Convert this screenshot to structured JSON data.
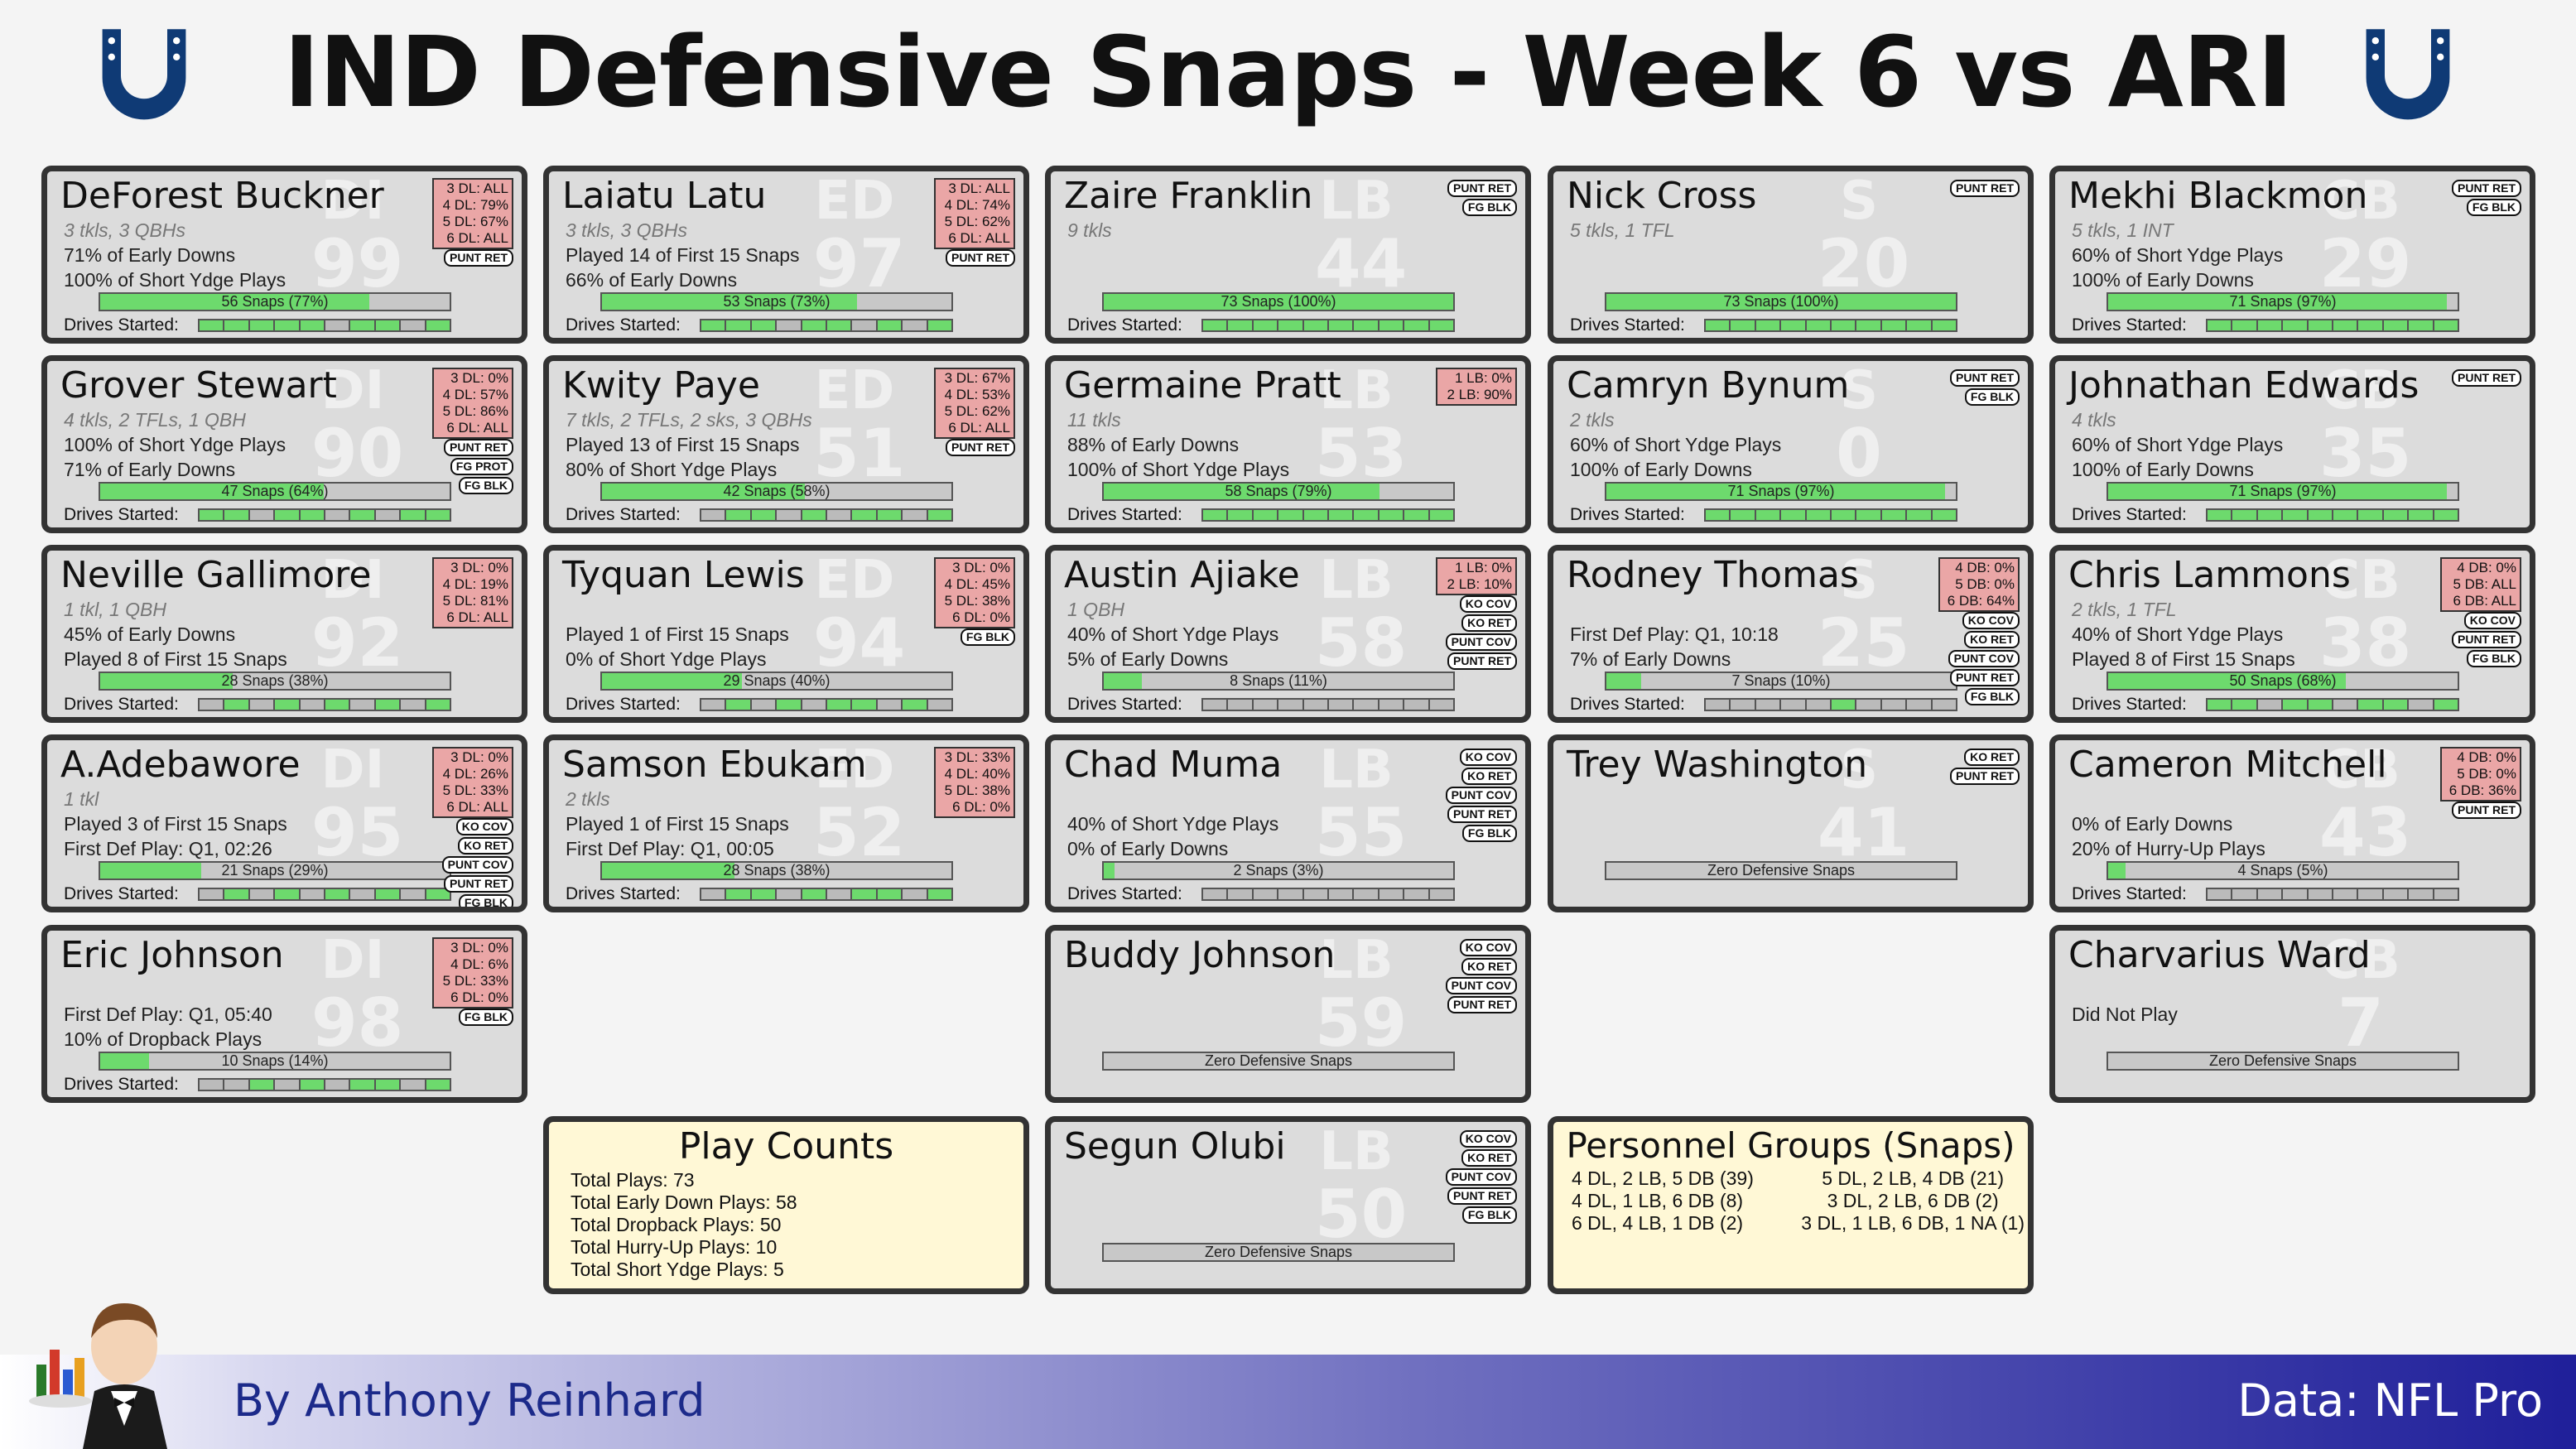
{
  "title": "IND Defensive Snaps - Week 6 vs ARI",
  "colors": {
    "fill": "#6dda6d",
    "alignment_box": "#eaa6a6",
    "card_bg": "#dcdcdc",
    "info_bg": "#fff8d6",
    "colts_blue": "#0f3a75"
  },
  "players": [
    {
      "name": "DeForest Buckner",
      "pos": "DI",
      "num": "99",
      "col": 0,
      "row": 0,
      "lines": [
        {
          "t": "3 tkls, 3 QBHs",
          "it": true
        },
        {
          "t": "71% of Early Downs"
        },
        {
          "t": "100% of Short Ydge Plays"
        }
      ],
      "snaps": {
        "label": "56 Snaps (77%)",
        "pct": 77
      },
      "drives_label": "Drives Started:",
      "drives": [
        1,
        1,
        1,
        1,
        1,
        0,
        1,
        1,
        0,
        1
      ],
      "align": [
        "3 DL: ALL",
        "4 DL: 79%",
        "5 DL: 67%",
        "6 DL: ALL"
      ],
      "badges": [
        "PUNT RET"
      ]
    },
    {
      "name": "Laiatu Latu",
      "pos": "ED",
      "num": "97",
      "col": 1,
      "row": 0,
      "lines": [
        {
          "t": "3 tkls, 3 QBHs",
          "it": true
        },
        {
          "t": "Played 14 of First 15 Snaps"
        },
        {
          "t": "66% of Early Downs"
        }
      ],
      "snaps": {
        "label": "53 Snaps (73%)",
        "pct": 73
      },
      "drives_label": "Drives Started:",
      "drives": [
        1,
        1,
        1,
        0,
        1,
        1,
        0,
        1,
        0,
        1
      ],
      "align": [
        "3 DL: ALL",
        "4 DL: 74%",
        "5 DL: 62%",
        "6 DL: ALL"
      ],
      "badges": [
        "PUNT RET"
      ]
    },
    {
      "name": "Zaire Franklin",
      "pos": "LB",
      "num": "44",
      "col": 2,
      "row": 0,
      "lines": [
        {
          "t": "9 tkls",
          "it": true
        },
        {
          "t": ""
        },
        {
          "t": ""
        }
      ],
      "snaps": {
        "label": "73 Snaps (100%)",
        "pct": 100
      },
      "drives_label": "Drives Started:",
      "drives": [
        1,
        1,
        1,
        1,
        1,
        1,
        1,
        1,
        1,
        1
      ],
      "align": [],
      "badges": [
        "PUNT RET",
        "FG BLK"
      ]
    },
    {
      "name": "Nick Cross",
      "pos": "S",
      "num": "20",
      "col": 3,
      "row": 0,
      "lines": [
        {
          "t": "5 tkls, 1 TFL",
          "it": true
        },
        {
          "t": ""
        },
        {
          "t": ""
        }
      ],
      "snaps": {
        "label": "73 Snaps (100%)",
        "pct": 100
      },
      "drives_label": "Drives Started:",
      "drives": [
        1,
        1,
        1,
        1,
        1,
        1,
        1,
        1,
        1,
        1
      ],
      "align": [],
      "badges": [
        "PUNT RET"
      ]
    },
    {
      "name": "Mekhi Blackmon",
      "pos": "CB",
      "num": "29",
      "col": 4,
      "row": 0,
      "lines": [
        {
          "t": "5 tkls, 1 INT",
          "it": true
        },
        {
          "t": "60% of Short Ydge Plays"
        },
        {
          "t": "100% of Early Downs"
        }
      ],
      "snaps": {
        "label": "71 Snaps (97%)",
        "pct": 97
      },
      "drives_label": "Drives Started:",
      "drives": [
        1,
        1,
        1,
        1,
        1,
        1,
        1,
        1,
        1,
        1
      ],
      "align": [],
      "badges": [
        "PUNT RET",
        "FG BLK"
      ]
    },
    {
      "name": "Grover Stewart",
      "pos": "DI",
      "num": "90",
      "col": 0,
      "row": 1,
      "lines": [
        {
          "t": "4 tkls, 2 TFLs, 1 QBH",
          "it": true
        },
        {
          "t": "100% of Short Ydge Plays"
        },
        {
          "t": "71% of Early Downs"
        }
      ],
      "snaps": {
        "label": "47 Snaps (64%)",
        "pct": 64
      },
      "drives_label": "Drives Started:",
      "drives": [
        1,
        1,
        0,
        1,
        1,
        0,
        1,
        0,
        1,
        1
      ],
      "align": [
        "3 DL: 0%",
        "4 DL: 57%",
        "5 DL: 86%",
        "6 DL: ALL"
      ],
      "badges": [
        "PUNT RET",
        "FG PROT",
        "FG BLK"
      ]
    },
    {
      "name": "Kwity Paye",
      "pos": "ED",
      "num": "51",
      "col": 1,
      "row": 1,
      "lines": [
        {
          "t": "7 tkls, 2 TFLs, 2 sks, 3 QBHs",
          "it": true
        },
        {
          "t": "Played 13 of First 15 Snaps"
        },
        {
          "t": "80% of Short Ydge Plays"
        }
      ],
      "snaps": {
        "label": "42 Snaps (58%)",
        "pct": 58
      },
      "drives_label": "Drives Started:",
      "drives": [
        0,
        1,
        1,
        0,
        1,
        0,
        1,
        1,
        0,
        1
      ],
      "align": [
        "3 DL: 67%",
        "4 DL: 53%",
        "5 DL: 62%",
        "6 DL: ALL"
      ],
      "badges": [
        "PUNT RET"
      ]
    },
    {
      "name": "Germaine Pratt",
      "pos": "LB",
      "num": "53",
      "col": 2,
      "row": 1,
      "lines": [
        {
          "t": "11 tkls",
          "it": true
        },
        {
          "t": "88% of Early Downs"
        },
        {
          "t": "100% of Short Ydge Plays"
        }
      ],
      "snaps": {
        "label": "58 Snaps (79%)",
        "pct": 79
      },
      "drives_label": "Drives Started:",
      "drives": [
        1,
        1,
        1,
        1,
        1,
        1,
        1,
        1,
        1,
        1
      ],
      "align": [
        "1 LB: 0%",
        "2 LB: 90%"
      ],
      "badges": []
    },
    {
      "name": "Camryn Bynum",
      "pos": "S",
      "num": "0",
      "col": 3,
      "row": 1,
      "lines": [
        {
          "t": "2 tkls",
          "it": true
        },
        {
          "t": "60% of Short Ydge Plays"
        },
        {
          "t": "100% of Early Downs"
        }
      ],
      "snaps": {
        "label": "71 Snaps (97%)",
        "pct": 97
      },
      "drives_label": "Drives Started:",
      "drives": [
        1,
        1,
        1,
        1,
        1,
        1,
        1,
        1,
        1,
        1
      ],
      "align": [],
      "badges": [
        "PUNT RET",
        "FG BLK"
      ]
    },
    {
      "name": "Johnathan Edwards",
      "pos": "CB",
      "num": "35",
      "col": 4,
      "row": 1,
      "lines": [
        {
          "t": "4 tkls",
          "it": true
        },
        {
          "t": "60% of Short Ydge Plays"
        },
        {
          "t": "100% of Early Downs"
        }
      ],
      "snaps": {
        "label": "71 Snaps (97%)",
        "pct": 97
      },
      "drives_label": "Drives Started:",
      "drives": [
        1,
        1,
        1,
        1,
        1,
        1,
        1,
        1,
        1,
        1
      ],
      "align": [],
      "badges": [
        "PUNT RET"
      ]
    },
    {
      "name": "Neville Gallimore",
      "pos": "DI",
      "num": "92",
      "col": 0,
      "row": 2,
      "lines": [
        {
          "t": "1 tkl, 1 QBH",
          "it": true
        },
        {
          "t": "45% of Early Downs"
        },
        {
          "t": "Played 8 of First 15 Snaps"
        }
      ],
      "snaps": {
        "label": "28 Snaps (38%)",
        "pct": 38
      },
      "drives_label": "Drives Started:",
      "drives": [
        0,
        1,
        0,
        1,
        0,
        1,
        0,
        1,
        0,
        1
      ],
      "align": [
        "3 DL: 0%",
        "4 DL: 19%",
        "5 DL: 81%",
        "6 DL: ALL"
      ],
      "badges": []
    },
    {
      "name": "Tyquan Lewis",
      "pos": "ED",
      "num": "94",
      "col": 1,
      "row": 2,
      "lines": [
        {
          "t": "",
          "it": true
        },
        {
          "t": "Played 1 of First 15 Snaps"
        },
        {
          "t": "0% of Short Ydge Plays"
        }
      ],
      "snaps": {
        "label": "29 Snaps (40%)",
        "pct": 40
      },
      "drives_label": "Drives Started:",
      "drives": [
        0,
        1,
        0,
        1,
        0,
        1,
        1,
        0,
        1,
        0
      ],
      "align": [
        "3 DL: 0%",
        "4 DL: 45%",
        "5 DL: 38%",
        "6 DL: 0%"
      ],
      "badges": [
        "FG BLK"
      ]
    },
    {
      "name": "Austin Ajiake",
      "pos": "LB",
      "num": "58",
      "col": 2,
      "row": 2,
      "lines": [
        {
          "t": "1 QBH",
          "it": true
        },
        {
          "t": "40% of Short Ydge Plays"
        },
        {
          "t": "5% of Early Downs"
        }
      ],
      "snaps": {
        "label": "8 Snaps (11%)",
        "pct": 11
      },
      "drives_label": "Drives Started:",
      "drives": [
        0,
        0,
        0,
        0,
        0,
        0,
        0,
        0,
        0,
        0
      ],
      "align": [
        "1 LB: 0%",
        "2 LB: 10%"
      ],
      "badges": [
        "KO COV",
        "KO RET",
        "PUNT COV",
        "PUNT RET"
      ]
    },
    {
      "name": "Rodney Thomas",
      "pos": "S",
      "num": "25",
      "col": 3,
      "row": 2,
      "lines": [
        {
          "t": "",
          "it": true
        },
        {
          "t": "First Def Play: Q1, 10:18"
        },
        {
          "t": "7% of Early Downs"
        }
      ],
      "snaps": {
        "label": "7 Snaps (10%)",
        "pct": 10
      },
      "drives_label": "Drives Started:",
      "drives": [
        0,
        0,
        0,
        0,
        0,
        1,
        0,
        0,
        0,
        0
      ],
      "align": [
        "4 DB: 0%",
        "5 DB: 0%",
        "6 DB: 64%"
      ],
      "badges": [
        "KO COV",
        "KO RET",
        "PUNT COV",
        "PUNT RET",
        "FG BLK"
      ]
    },
    {
      "name": "Chris Lammons",
      "pos": "CB",
      "num": "38",
      "col": 4,
      "row": 2,
      "lines": [
        {
          "t": "2 tkls, 1 TFL",
          "it": true
        },
        {
          "t": "40% of Short Ydge Plays"
        },
        {
          "t": "Played 8 of First 15 Snaps"
        }
      ],
      "snaps": {
        "label": "50 Snaps (68%)",
        "pct": 68
      },
      "drives_label": "Drives Started:",
      "drives": [
        1,
        1,
        0,
        1,
        1,
        0,
        1,
        1,
        0,
        1
      ],
      "align": [
        "4 DB: 0%",
        "5 DB: ALL",
        "6 DB: ALL"
      ],
      "badges": [
        "KO COV",
        "PUNT RET",
        "FG BLK"
      ]
    },
    {
      "name": "A.Adebawore",
      "pos": "DI",
      "num": "95",
      "col": 0,
      "row": 3,
      "lines": [
        {
          "t": "1 tkl",
          "it": true
        },
        {
          "t": "Played 3 of First 15 Snaps"
        },
        {
          "t": "First Def Play: Q1, 02:26"
        }
      ],
      "snaps": {
        "label": "21 Snaps (29%)",
        "pct": 29
      },
      "drives_label": "Drives Started:",
      "drives": [
        0,
        1,
        0,
        1,
        0,
        1,
        0,
        1,
        0,
        1
      ],
      "align": [
        "3 DL: 0%",
        "4 DL: 26%",
        "5 DL: 33%",
        "6 DL: ALL"
      ],
      "badges": [
        "KO COV",
        "KO RET",
        "PUNT COV",
        "PUNT RET",
        "FG BLK"
      ]
    },
    {
      "name": "Samson Ebukam",
      "pos": "ED",
      "num": "52",
      "col": 1,
      "row": 3,
      "lines": [
        {
          "t": "2 tkls",
          "it": true
        },
        {
          "t": "Played 1 of First 15 Snaps"
        },
        {
          "t": "First Def Play: Q1, 00:05"
        }
      ],
      "snaps": {
        "label": "28 Snaps (38%)",
        "pct": 38
      },
      "drives_label": "Drives Started:",
      "drives": [
        0,
        1,
        1,
        0,
        1,
        0,
        1,
        1,
        0,
        1
      ],
      "align": [
        "3 DL: 33%",
        "4 DL: 40%",
        "5 DL: 38%",
        "6 DL: 0%"
      ],
      "badges": []
    },
    {
      "name": "Chad Muma",
      "pos": "LB",
      "num": "55",
      "col": 2,
      "row": 3,
      "lines": [
        {
          "t": "",
          "it": true
        },
        {
          "t": "40% of Short Ydge Plays"
        },
        {
          "t": "0% of Early Downs"
        }
      ],
      "snaps": {
        "label": "2 Snaps (3%)",
        "pct": 3
      },
      "drives_label": "Drives Started:",
      "drives": [
        0,
        0,
        0,
        0,
        0,
        0,
        0,
        0,
        0,
        0
      ],
      "align": [],
      "badges": [
        "KO COV",
        "KO RET",
        "PUNT COV",
        "PUNT RET",
        "FG BLK"
      ]
    },
    {
      "name": "Trey Washington",
      "pos": "S",
      "num": "41",
      "col": 3,
      "row": 3,
      "lines": [
        {
          "t": "",
          "it": true
        },
        {
          "t": ""
        },
        {
          "t": ""
        }
      ],
      "snaps": {
        "label": "Zero Defensive Snaps",
        "pct": 0
      },
      "drives_label": "",
      "drives": [],
      "align": [],
      "badges": [
        "KO RET",
        "PUNT RET"
      ]
    },
    {
      "name": "Cameron Mitchell",
      "pos": "CB",
      "num": "43",
      "col": 4,
      "row": 3,
      "lines": [
        {
          "t": "",
          "it": true
        },
        {
          "t": "0% of Early Downs"
        },
        {
          "t": "20% of Hurry-Up Plays"
        }
      ],
      "snaps": {
        "label": "4 Snaps (5%)",
        "pct": 5
      },
      "drives_label": "Drives Started:",
      "drives": [
        0,
        0,
        0,
        0,
        0,
        0,
        0,
        0,
        0,
        0
      ],
      "align": [
        "4 DB: 0%",
        "5 DB: 0%",
        "6 DB: 36%"
      ],
      "badges": [
        "PUNT RET"
      ]
    },
    {
      "name": "Eric Johnson",
      "pos": "DI",
      "num": "98",
      "col": 0,
      "row": 4,
      "lines": [
        {
          "t": "",
          "it": true
        },
        {
          "t": "First Def Play: Q1, 05:40"
        },
        {
          "t": "10% of Dropback Plays"
        }
      ],
      "snaps": {
        "label": "10 Snaps (14%)",
        "pct": 14
      },
      "drives_label": "Drives Started:",
      "drives": [
        0,
        0,
        1,
        0,
        1,
        0,
        1,
        1,
        0,
        1
      ],
      "align": [
        "3 DL: 0%",
        "4 DL: 6%",
        "5 DL: 33%",
        "6 DL: 0%"
      ],
      "badges": [
        "FG BLK"
      ]
    },
    {
      "name": "Buddy Johnson",
      "pos": "LB",
      "num": "59",
      "col": 2,
      "row": 4,
      "lines": [
        {
          "t": "",
          "it": true
        },
        {
          "t": ""
        },
        {
          "t": ""
        }
      ],
      "snaps": {
        "label": "Zero Defensive Snaps",
        "pct": 0
      },
      "drives_label": "",
      "drives": [],
      "align": [],
      "badges": [
        "KO COV",
        "KO RET",
        "PUNT COV",
        "PUNT RET"
      ]
    },
    {
      "name": "Charvarius Ward",
      "pos": "CB",
      "num": "7",
      "col": 4,
      "row": 4,
      "lines": [
        {
          "t": "",
          "it": true
        },
        {
          "t": "Did Not Play"
        },
        {
          "t": ""
        }
      ],
      "snaps": {
        "label": "Zero Defensive Snaps",
        "pct": 0
      },
      "drives_label": "",
      "drives": [],
      "align": [],
      "badges": []
    },
    {
      "name": "Segun Olubi",
      "pos": "LB",
      "num": "50",
      "col": 2,
      "row": 5,
      "lines": [
        {
          "t": "",
          "it": true
        },
        {
          "t": ""
        },
        {
          "t": ""
        }
      ],
      "snaps": {
        "label": "Zero Defensive Snaps",
        "pct": 0
      },
      "drives_label": "",
      "drives": [],
      "align": [],
      "badges": [
        "KO COV",
        "KO RET",
        "PUNT COV",
        "PUNT RET",
        "FG BLK"
      ]
    }
  ],
  "play_counts": {
    "title": "Play Counts",
    "lines": [
      "Total Plays: 73",
      "Total Early Down Plays: 58",
      "Total Dropback Plays: 50",
      "Total Hurry-Up Plays: 10",
      "Total Short Ydge Plays: 5"
    ]
  },
  "personnel": {
    "title": "Personnel Groups (Snaps)",
    "left": [
      "4 DL, 2 LB, 5 DB (39)",
      "4 DL, 1 LB, 6 DB (8)",
      "6 DL, 4 LB, 1 DB (2)"
    ],
    "right": [
      "5 DL, 2 LB, 4 DB (21)",
      "3 DL, 2 LB, 6 DB (2)",
      "3 DL, 1 LB, 6 DB, 1 NA (1)"
    ]
  },
  "footer": {
    "author": "By Anthony Reinhard",
    "credit": "Data: NFL Pro"
  }
}
